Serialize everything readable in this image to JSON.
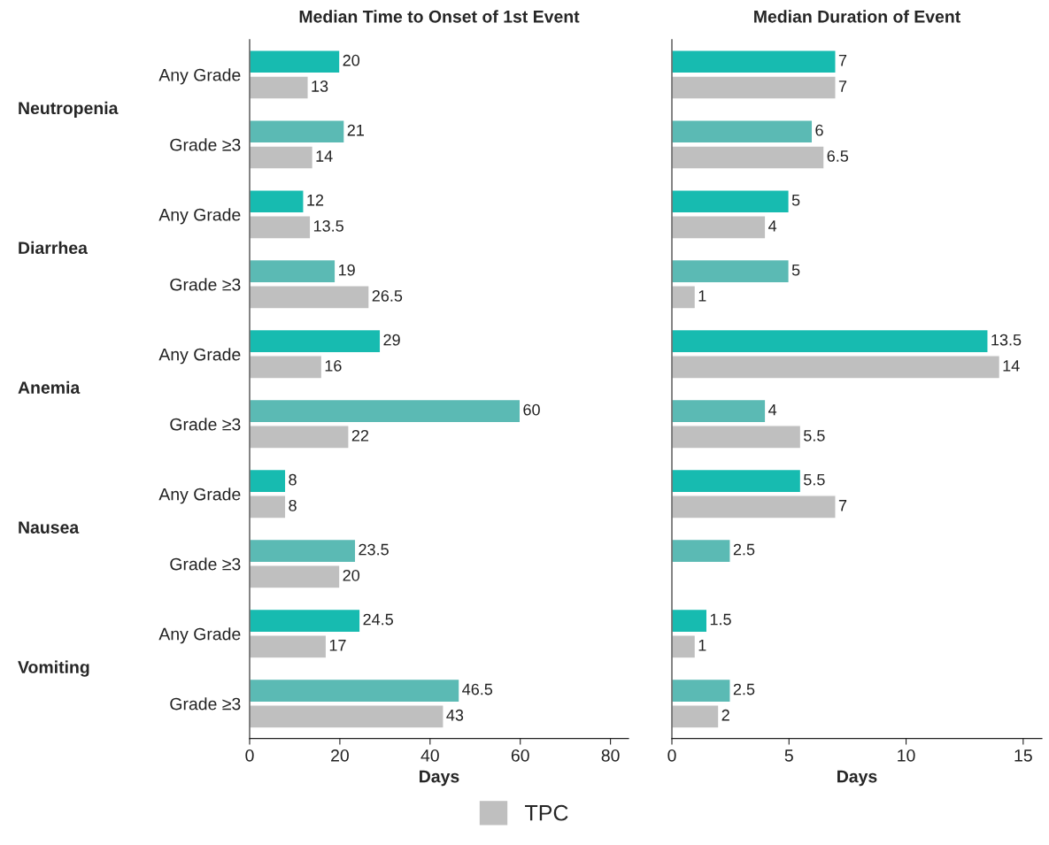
{
  "chart_data": [
    {
      "type": "bar",
      "orientation": "horizontal",
      "title": "Median Time to Onset of 1st Event",
      "xlabel": "Days",
      "categories": [
        "Any Grade",
        "Grade ≥3",
        "Any Grade",
        "Grade ≥3",
        "Any Grade",
        "Grade ≥3",
        "Any Grade",
        "Grade ≥3",
        "Any Grade",
        "Grade ≥3"
      ],
      "annotations": [
        "Neutropenia",
        "Diarrhea",
        "Anemia",
        "Nausea",
        "Vomiting"
      ],
      "series": [
        {
          "colors": [
            "#17bbb0",
            "#5bbab4",
            "#17bbb0",
            "#5bbab4",
            "#17bbb0",
            "#5bbab4",
            "#17bbb0",
            "#5bbab4",
            "#17bbb0",
            "#5bbab4"
          ],
          "values": [
            20,
            21,
            12,
            19,
            29,
            60,
            8,
            23.5,
            24.5,
            46.5
          ]
        },
        {
          "name": "TPC",
          "color": "#bfbfbf",
          "values": [
            13,
            14,
            13.5,
            26.5,
            16,
            22,
            8,
            20,
            17,
            43
          ]
        }
      ],
      "xlim": [
        0,
        84
      ],
      "xticks": [
        0,
        20,
        40,
        60,
        80
      ],
      "data_labels": true,
      "grid": false,
      "legend": "bottom"
    },
    {
      "type": "bar",
      "orientation": "horizontal",
      "title": "Median Duration of Event",
      "xlabel": "Days",
      "tick_labels": "x",
      "categories": [
        null,
        null,
        null,
        null,
        null,
        null,
        null,
        null,
        null,
        null
      ],
      "series": [
        {
          "colors": [
            "#17bbb0",
            "#5bbab4",
            "#17bbb0",
            "#5bbab4",
            "#17bbb0",
            "#5bbab4",
            "#17bbb0",
            "#5bbab4",
            "#17bbb0",
            "#5bbab4"
          ],
          "values": [
            7,
            6,
            5,
            5,
            13.5,
            4,
            5.5,
            2.5,
            1.5,
            2.5
          ]
        },
        {
          "color": "#bfbfbf",
          "values": [
            7,
            6.5,
            4,
            1,
            14,
            5.5,
            7,
            null,
            1,
            2
          ]
        }
      ],
      "xlim": [
        0,
        15.8
      ],
      "xticks": [
        0,
        5,
        10,
        15
      ],
      "data_labels": true,
      "grid": false
    }
  ]
}
